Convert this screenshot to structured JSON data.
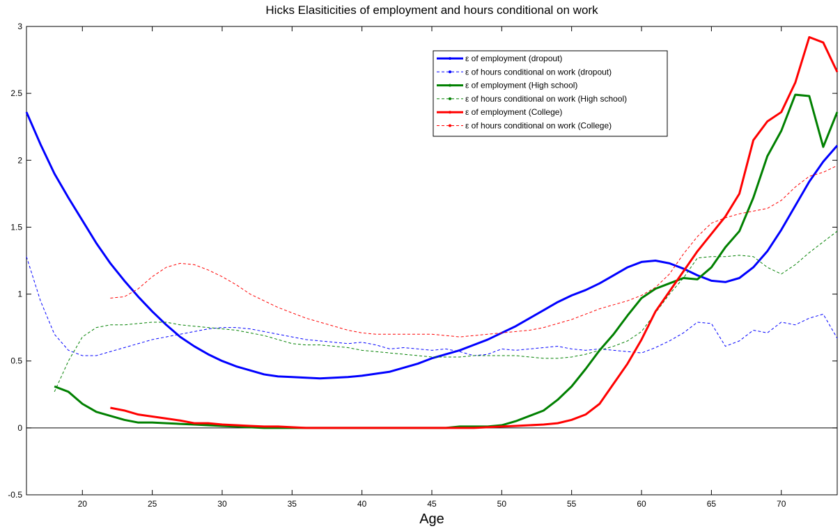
{
  "chart_data": {
    "type": "line",
    "title": "Hicks Elasiticities of employment and hours conditional on work",
    "x_label": "Age",
    "xlim": [
      16,
      74
    ],
    "xticks": [
      20,
      25,
      30,
      35,
      40,
      45,
      50,
      55,
      60,
      65,
      70
    ],
    "ylim": [
      -0.5,
      3
    ],
    "yticks": [
      -0.5,
      0,
      0.5,
      1,
      1.5,
      2,
      2.5,
      3
    ],
    "legend": "top-right",
    "x": [
      16,
      17,
      18,
      19,
      20,
      21,
      22,
      23,
      24,
      25,
      26,
      27,
      28,
      29,
      30,
      31,
      32,
      33,
      34,
      35,
      36,
      37,
      38,
      39,
      40,
      41,
      42,
      43,
      44,
      45,
      46,
      47,
      48,
      49,
      50,
      51,
      52,
      53,
      54,
      55,
      56,
      57,
      58,
      59,
      60,
      61,
      62,
      63,
      64,
      65,
      66,
      67,
      68,
      69,
      70,
      71,
      72,
      73,
      74
    ],
    "series": [
      {
        "name": "ε of employment (dropout)",
        "color": "#0000ff",
        "linestyle": "solid",
        "values": [
          2.36,
          2.12,
          1.9,
          1.72,
          1.55,
          1.38,
          1.23,
          1.1,
          0.98,
          0.87,
          0.77,
          0.68,
          0.61,
          0.55,
          0.5,
          0.46,
          0.43,
          0.4,
          0.385,
          0.38,
          0.375,
          0.37,
          0.375,
          0.38,
          0.39,
          0.405,
          0.42,
          0.45,
          0.48,
          0.52,
          0.55,
          0.58,
          0.62,
          0.66,
          0.71,
          0.76,
          0.82,
          0.88,
          0.94,
          0.99,
          1.03,
          1.08,
          1.14,
          1.2,
          1.24,
          1.25,
          1.23,
          1.19,
          1.14,
          1.1,
          1.09,
          1.12,
          1.2,
          1.32,
          1.48,
          1.66,
          1.84,
          1.99,
          2.11
        ]
      },
      {
        "name": "ε of hours conditional on work (dropout)",
        "color": "#0000ff",
        "linestyle": "dashed",
        "values": [
          1.28,
          0.95,
          0.7,
          0.58,
          0.54,
          0.54,
          0.57,
          0.6,
          0.63,
          0.66,
          0.68,
          0.7,
          0.72,
          0.74,
          0.75,
          0.75,
          0.74,
          0.72,
          0.7,
          0.68,
          0.66,
          0.65,
          0.64,
          0.63,
          0.64,
          0.62,
          0.59,
          0.6,
          0.59,
          0.58,
          0.59,
          0.57,
          0.54,
          0.55,
          0.59,
          0.58,
          0.59,
          0.6,
          0.61,
          0.59,
          0.58,
          0.59,
          0.58,
          0.57,
          0.56,
          0.6,
          0.65,
          0.71,
          0.79,
          0.78,
          0.61,
          0.65,
          0.73,
          0.71,
          0.79,
          0.77,
          0.82,
          0.85,
          0.67
        ]
      },
      {
        "name": "ε of employment (High school)",
        "color": "#008000",
        "linestyle": "solid",
        "values": [
          null,
          null,
          0.31,
          0.27,
          0.18,
          0.12,
          0.09,
          0.06,
          0.04,
          0.04,
          0.035,
          0.03,
          0.025,
          0.02,
          0.015,
          0.01,
          0.005,
          0,
          0,
          0,
          0,
          0,
          0,
          0,
          0,
          0,
          0,
          0,
          0,
          0,
          0,
          0.01,
          0.01,
          0.01,
          0.02,
          0.05,
          0.09,
          0.13,
          0.21,
          0.31,
          0.44,
          0.58,
          0.7,
          0.84,
          0.97,
          1.04,
          1.08,
          1.12,
          1.11,
          1.2,
          1.35,
          1.47,
          1.72,
          2.03,
          2.22,
          2.49,
          2.48,
          2.1,
          2.36
        ]
      },
      {
        "name": "ε of hours conditional on work (High school)",
        "color": "#008000",
        "linestyle": "dashed",
        "values": [
          null,
          null,
          0.27,
          0.5,
          0.68,
          0.75,
          0.77,
          0.77,
          0.78,
          0.79,
          0.79,
          0.77,
          0.76,
          0.75,
          0.74,
          0.73,
          0.71,
          0.69,
          0.66,
          0.63,
          0.62,
          0.62,
          0.61,
          0.6,
          0.58,
          0.57,
          0.56,
          0.55,
          0.54,
          0.53,
          0.53,
          0.53,
          0.54,
          0.54,
          0.54,
          0.54,
          0.53,
          0.52,
          0.52,
          0.53,
          0.55,
          0.58,
          0.61,
          0.65,
          0.72,
          0.86,
          1.0,
          1.12,
          1.27,
          1.28,
          1.28,
          1.29,
          1.28,
          1.2,
          1.15,
          1.22,
          1.31,
          1.39,
          1.47
        ]
      },
      {
        "name": "ε of employment (College)",
        "color": "#ff0000",
        "linestyle": "solid",
        "values": [
          null,
          null,
          null,
          null,
          null,
          null,
          0.15,
          0.13,
          0.1,
          0.085,
          0.07,
          0.055,
          0.035,
          0.035,
          0.025,
          0.02,
          0.015,
          0.01,
          0.01,
          0.005,
          0,
          0,
          0,
          0,
          0,
          0,
          0,
          0,
          0,
          0,
          0,
          0,
          0,
          0.005,
          0.01,
          0.015,
          0.02,
          0.025,
          0.035,
          0.06,
          0.1,
          0.18,
          0.33,
          0.48,
          0.66,
          0.87,
          1.02,
          1.17,
          1.32,
          1.45,
          1.58,
          1.75,
          2.15,
          2.29,
          2.36,
          2.58,
          2.92,
          2.88,
          2.66
        ]
      },
      {
        "name": "ε of hours conditional on work (College)",
        "color": "#ff0000",
        "linestyle": "dashed",
        "values": [
          null,
          null,
          null,
          null,
          null,
          null,
          0.97,
          0.98,
          1.04,
          1.13,
          1.2,
          1.23,
          1.22,
          1.18,
          1.13,
          1.07,
          1.0,
          0.95,
          0.9,
          0.86,
          0.82,
          0.79,
          0.76,
          0.73,
          0.71,
          0.7,
          0.7,
          0.7,
          0.7,
          0.7,
          0.69,
          0.68,
          0.69,
          0.7,
          0.71,
          0.72,
          0.73,
          0.75,
          0.78,
          0.81,
          0.85,
          0.89,
          0.92,
          0.95,
          0.99,
          1.05,
          1.15,
          1.3,
          1.43,
          1.53,
          1.57,
          1.6,
          1.62,
          1.64,
          1.7,
          1.8,
          1.88,
          1.91,
          1.96
        ]
      }
    ]
  }
}
